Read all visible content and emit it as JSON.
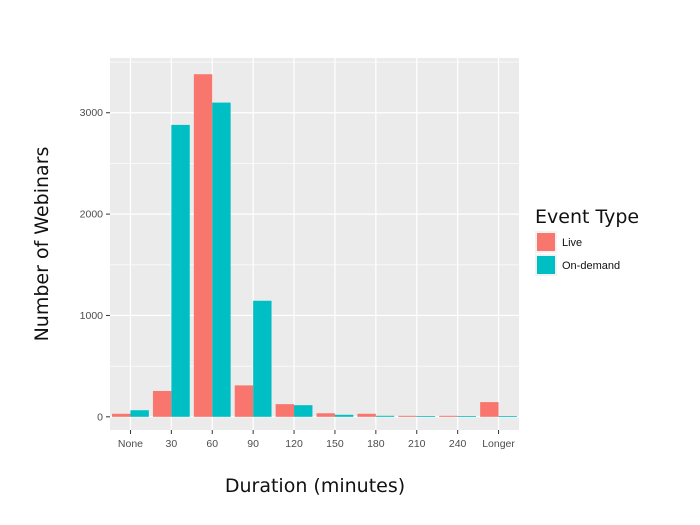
{
  "chart_data": {
    "type": "bar",
    "xlabel": "Duration (minutes)",
    "ylabel": "Number of Webinars",
    "categories": [
      "None",
      "30",
      "60",
      "90",
      "120",
      "150",
      "180",
      "210",
      "240",
      "Longer"
    ],
    "series": [
      {
        "name": "Live",
        "color": "#f8766d",
        "values": [
          30,
          255,
          3380,
          310,
          125,
          35,
          30,
          10,
          10,
          145
        ]
      },
      {
        "name": "On-demand",
        "color": "#00bfc4",
        "values": [
          65,
          2880,
          3100,
          1145,
          115,
          20,
          10,
          5,
          0,
          5
        ]
      }
    ],
    "ylim": [
      -130,
      3540
    ],
    "yticks": [
      0,
      1000,
      2000,
      3000
    ],
    "legend": {
      "title": "Event Type",
      "position": "right"
    },
    "grid": true,
    "panel_background": "#ebebeb",
    "grid_color": "#ffffff"
  }
}
